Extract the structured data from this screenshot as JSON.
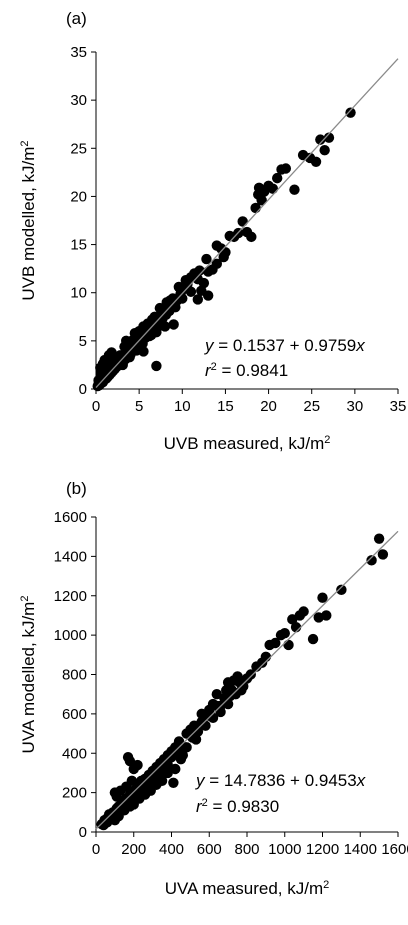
{
  "chart_data": [
    {
      "type": "scatter",
      "panel_label": "(a)",
      "xlabel_text": "UVB measured, kJ/m",
      "xlabel_sup": "2",
      "ylabel_text": "UVB modelled, kJ/m",
      "ylabel_sup": "2",
      "xlim": [
        0,
        35
      ],
      "ylim": [
        0,
        35
      ],
      "xticks": [
        "0",
        "5",
        "10",
        "15",
        "20",
        "25",
        "30",
        "35"
      ],
      "yticks": [
        "0",
        "5",
        "10",
        "15",
        "20",
        "25",
        "30",
        "35"
      ],
      "equation": {
        "y": "y",
        "eq": " = 0.1537 + 0.9759",
        "x": "x"
      },
      "r2": {
        "r": "r",
        "sup": "2",
        "eq": " = 0.9841"
      },
      "fit": {
        "intercept": 0.1537,
        "slope": 0.9759
      },
      "grid": false,
      "legend": "none",
      "points": [
        [
          0.2,
          0.3
        ],
        [
          0.3,
          0.5
        ],
        [
          0.4,
          0.4
        ],
        [
          0.5,
          0.8
        ],
        [
          0.6,
          0.6
        ],
        [
          0.7,
          1.0
        ],
        [
          0.8,
          0.7
        ],
        [
          0.9,
          1.2
        ],
        [
          1.0,
          1.0
        ],
        [
          1.1,
          1.4
        ],
        [
          1.2,
          1.1
        ],
        [
          1.3,
          1.6
        ],
        [
          1.4,
          1.3
        ],
        [
          1.5,
          1.8
        ],
        [
          1.6,
          1.5
        ],
        [
          1.7,
          2.0
        ],
        [
          1.8,
          1.7
        ],
        [
          1.9,
          2.2
        ],
        [
          2.0,
          1.9
        ],
        [
          2.1,
          2.4
        ],
        [
          2.2,
          2.1
        ],
        [
          2.3,
          2.6
        ],
        [
          2.4,
          2.3
        ],
        [
          2.5,
          2.8
        ],
        [
          2.6,
          2.5
        ],
        [
          2.7,
          3.0
        ],
        [
          2.8,
          2.7
        ],
        [
          2.9,
          3.2
        ],
        [
          3.0,
          2.9
        ],
        [
          3.2,
          3.4
        ],
        [
          3.4,
          3.1
        ],
        [
          3.5,
          3.7
        ],
        [
          3.6,
          3.3
        ],
        [
          3.8,
          3.9
        ],
        [
          4.0,
          3.6
        ],
        [
          4.1,
          4.2
        ],
        [
          4.2,
          3.9
        ],
        [
          4.4,
          4.5
        ],
        [
          4.6,
          4.2
        ],
        [
          4.8,
          4.9
        ],
        [
          5.0,
          4.7
        ],
        [
          5.1,
          5.3
        ],
        [
          5.3,
          5.0
        ],
        [
          5.5,
          5.6
        ],
        [
          5.7,
          5.3
        ],
        [
          5.9,
          6.0
        ],
        [
          6.1,
          5.7
        ],
        [
          6.3,
          6.4
        ],
        [
          6.5,
          6.1
        ],
        [
          6.7,
          6.8
        ],
        [
          6.9,
          6.5
        ],
        [
          7.1,
          7.2
        ],
        [
          7.3,
          6.9
        ],
        [
          7.5,
          7.6
        ],
        [
          7.7,
          7.3
        ],
        [
          7.9,
          8.0
        ],
        [
          8.1,
          7.7
        ],
        [
          8.3,
          8.4
        ],
        [
          8.5,
          8.1
        ],
        [
          8.7,
          8.8
        ],
        [
          1.0,
          3.0
        ],
        [
          1.5,
          3.5
        ],
        [
          1.8,
          3.8
        ],
        [
          0.8,
          2.6
        ],
        [
          0.5,
          2.2
        ],
        [
          2.2,
          3.1
        ],
        [
          3.5,
          5.0
        ],
        [
          4.5,
          5.8
        ],
        [
          5.0,
          6.0
        ],
        [
          5.5,
          6.5
        ],
        [
          6.0,
          6.8
        ],
        [
          6.5,
          7.2
        ],
        [
          5.5,
          3.9
        ],
        [
          6.2,
          5.5
        ],
        [
          7.0,
          5.9
        ],
        [
          7.0,
          2.4
        ],
        [
          8.0,
          6.5
        ],
        [
          9.0,
          6.7
        ],
        [
          8.2,
          9.0
        ],
        [
          8.9,
          9.4
        ],
        [
          9.4,
          9.2
        ],
        [
          9.8,
          9.9
        ],
        [
          10.2,
          10.4
        ],
        [
          10.6,
          10.9
        ],
        [
          11.0,
          11.6
        ],
        [
          11.4,
          12.0
        ],
        [
          11.8,
          11.4
        ],
        [
          12.0,
          12.3
        ],
        [
          12.2,
          10.2
        ],
        [
          11.0,
          10.1
        ],
        [
          12.5,
          11.0
        ],
        [
          13.0,
          12.2
        ],
        [
          13.5,
          12.4
        ],
        [
          13.0,
          9.7
        ],
        [
          11.8,
          9.3
        ],
        [
          14.0,
          14.9
        ],
        [
          14.5,
          14.6
        ],
        [
          14.8,
          13.7
        ],
        [
          15.5,
          15.9
        ],
        [
          16.0,
          15.8
        ],
        [
          14.0,
          13.0
        ],
        [
          15.0,
          14.2
        ],
        [
          17.5,
          16.3
        ],
        [
          18.0,
          15.8
        ],
        [
          18.5,
          18.8
        ],
        [
          18.8,
          20.2
        ],
        [
          18.9,
          20.9
        ],
        [
          19.2,
          19.6
        ],
        [
          19.5,
          20.5
        ],
        [
          20.0,
          21.1
        ],
        [
          20.5,
          20.8
        ],
        [
          21.0,
          21.9
        ],
        [
          21.5,
          22.8
        ],
        [
          22.0,
          22.9
        ],
        [
          23.0,
          20.7
        ],
        [
          24.0,
          24.3
        ],
        [
          24.8,
          24.0
        ],
        [
          25.5,
          23.6
        ],
        [
          26.0,
          25.9
        ],
        [
          26.5,
          24.8
        ],
        [
          27.0,
          26.1
        ],
        [
          29.5,
          28.7
        ],
        [
          2.8,
          3.5
        ],
        [
          3.3,
          4.4
        ],
        [
          4.3,
          5.1
        ],
        [
          6.8,
          7.5
        ],
        [
          7.4,
          8.4
        ],
        [
          8.6,
          9.2
        ],
        [
          9.6,
          10.6
        ],
        [
          10.4,
          11.3
        ],
        [
          16.5,
          16.2
        ],
        [
          17.0,
          17.4
        ],
        [
          12.8,
          13.5
        ],
        [
          0.3,
          0.9
        ],
        [
          0.6,
          1.6
        ],
        [
          1.2,
          2.1
        ],
        [
          1.9,
          2.8
        ],
        [
          2.6,
          3.3
        ],
        [
          3.1,
          2.5
        ],
        [
          3.9,
          3.3
        ],
        [
          4.7,
          4.0
        ],
        [
          5.4,
          4.7
        ],
        [
          6.4,
          5.6
        ],
        [
          7.6,
          6.6
        ],
        [
          9.2,
          8.5
        ],
        [
          10.0,
          9.4
        ]
      ]
    },
    {
      "type": "scatter",
      "panel_label": "(b)",
      "xlabel_text": "UVA measured, kJ/m",
      "xlabel_sup": "2",
      "ylabel_text": "UVA modelled, kJ/m",
      "ylabel_sup": "2",
      "xlim": [
        0,
        1600
      ],
      "ylim": [
        0,
        1600
      ],
      "xticks": [
        "0",
        "200",
        "400",
        "600",
        "800",
        "1000",
        "1200",
        "1400",
        "1600"
      ],
      "yticks": [
        "0",
        "200",
        "400",
        "600",
        "800",
        "1000",
        "1200",
        "1400",
        "1600"
      ],
      "equation": {
        "y": "y",
        "eq": " = 14.7836 + 0.9453",
        "x": "x"
      },
      "r2": {
        "r": "r",
        "sup": "2",
        "eq": " = 0.9830"
      },
      "fit": {
        "intercept": 14.7836,
        "slope": 0.9453
      },
      "grid": false,
      "legend": "none",
      "points": [
        [
          30,
          40
        ],
        [
          45,
          60
        ],
        [
          60,
          70
        ],
        [
          75,
          85
        ],
        [
          90,
          100
        ],
        [
          100,
          95
        ],
        [
          110,
          120
        ],
        [
          120,
          130
        ],
        [
          130,
          110
        ],
        [
          140,
          150
        ],
        [
          150,
          140
        ],
        [
          160,
          170
        ],
        [
          170,
          160
        ],
        [
          180,
          190
        ],
        [
          190,
          175
        ],
        [
          200,
          210
        ],
        [
          210,
          200
        ],
        [
          220,
          230
        ],
        [
          230,
          215
        ],
        [
          240,
          250
        ],
        [
          250,
          240
        ],
        [
          260,
          270
        ],
        [
          270,
          255
        ],
        [
          280,
          290
        ],
        [
          290,
          280
        ],
        [
          300,
          310
        ],
        [
          310,
          295
        ],
        [
          320,
          330
        ],
        [
          330,
          315
        ],
        [
          340,
          350
        ],
        [
          350,
          335
        ],
        [
          360,
          370
        ],
        [
          370,
          355
        ],
        [
          380,
          390
        ],
        [
          390,
          375
        ],
        [
          400,
          410
        ],
        [
          410,
          390
        ],
        [
          420,
          430
        ],
        [
          430,
          415
        ],
        [
          440,
          450
        ],
        [
          100,
          200
        ],
        [
          110,
          180
        ],
        [
          130,
          210
        ],
        [
          160,
          230
        ],
        [
          170,
          380
        ],
        [
          180,
          360
        ],
        [
          200,
          320
        ],
        [
          190,
          260
        ],
        [
          220,
          340
        ],
        [
          240,
          260
        ],
        [
          100,
          60
        ],
        [
          120,
          80
        ],
        [
          150,
          110
        ],
        [
          180,
          130
        ],
        [
          200,
          140
        ],
        [
          230,
          170
        ],
        [
          260,
          190
        ],
        [
          290,
          210
        ],
        [
          320,
          240
        ],
        [
          350,
          260
        ],
        [
          380,
          300
        ],
        [
          410,
          250
        ],
        [
          420,
          320
        ],
        [
          450,
          370
        ],
        [
          470,
          430
        ],
        [
          480,
          500
        ],
        [
          500,
          520
        ],
        [
          510,
          480
        ],
        [
          520,
          540
        ],
        [
          540,
          510
        ],
        [
          560,
          560
        ],
        [
          580,
          540
        ],
        [
          600,
          620
        ],
        [
          620,
          580
        ],
        [
          640,
          640
        ],
        [
          660,
          610
        ],
        [
          680,
          680
        ],
        [
          700,
          650
        ],
        [
          720,
          720
        ],
        [
          740,
          700
        ],
        [
          760,
          760
        ],
        [
          780,
          740
        ],
        [
          800,
          780
        ],
        [
          820,
          800
        ],
        [
          850,
          840
        ],
        [
          880,
          860
        ],
        [
          900,
          890
        ],
        [
          920,
          950
        ],
        [
          950,
          960
        ],
        [
          980,
          1000
        ],
        [
          1000,
          1010
        ],
        [
          1020,
          950
        ],
        [
          1040,
          1080
        ],
        [
          1060,
          1040
        ],
        [
          1080,
          1100
        ],
        [
          1100,
          1120
        ],
        [
          1150,
          980
        ],
        [
          1180,
          1090
        ],
        [
          1200,
          1190
        ],
        [
          1220,
          1100
        ],
        [
          1300,
          1230
        ],
        [
          1460,
          1380
        ],
        [
          1500,
          1490
        ],
        [
          1520,
          1410
        ],
        [
          700,
          760
        ],
        [
          730,
          770
        ],
        [
          770,
          720
        ],
        [
          640,
          700
        ],
        [
          600,
          590
        ],
        [
          560,
          600
        ],
        [
          530,
          470
        ],
        [
          480,
          430
        ],
        [
          460,
          390
        ],
        [
          440,
          460
        ],
        [
          400,
          380
        ],
        [
          380,
          340
        ],
        [
          360,
          320
        ],
        [
          340,
          290
        ],
        [
          320,
          280
        ],
        [
          300,
          260
        ],
        [
          280,
          250
        ],
        [
          260,
          230
        ],
        [
          240,
          210
        ],
        [
          220,
          190
        ],
        [
          200,
          170
        ],
        [
          180,
          150
        ],
        [
          160,
          130
        ],
        [
          140,
          120
        ],
        [
          120,
          100
        ],
        [
          90,
          70
        ],
        [
          60,
          50
        ],
        [
          50,
          45
        ],
        [
          40,
          35
        ],
        [
          70,
          90
        ],
        [
          85,
          75
        ],
        [
          620,
          650
        ],
        [
          660,
          640
        ],
        [
          690,
          720
        ],
        [
          710,
          690
        ],
        [
          750,
          790
        ]
      ]
    }
  ]
}
